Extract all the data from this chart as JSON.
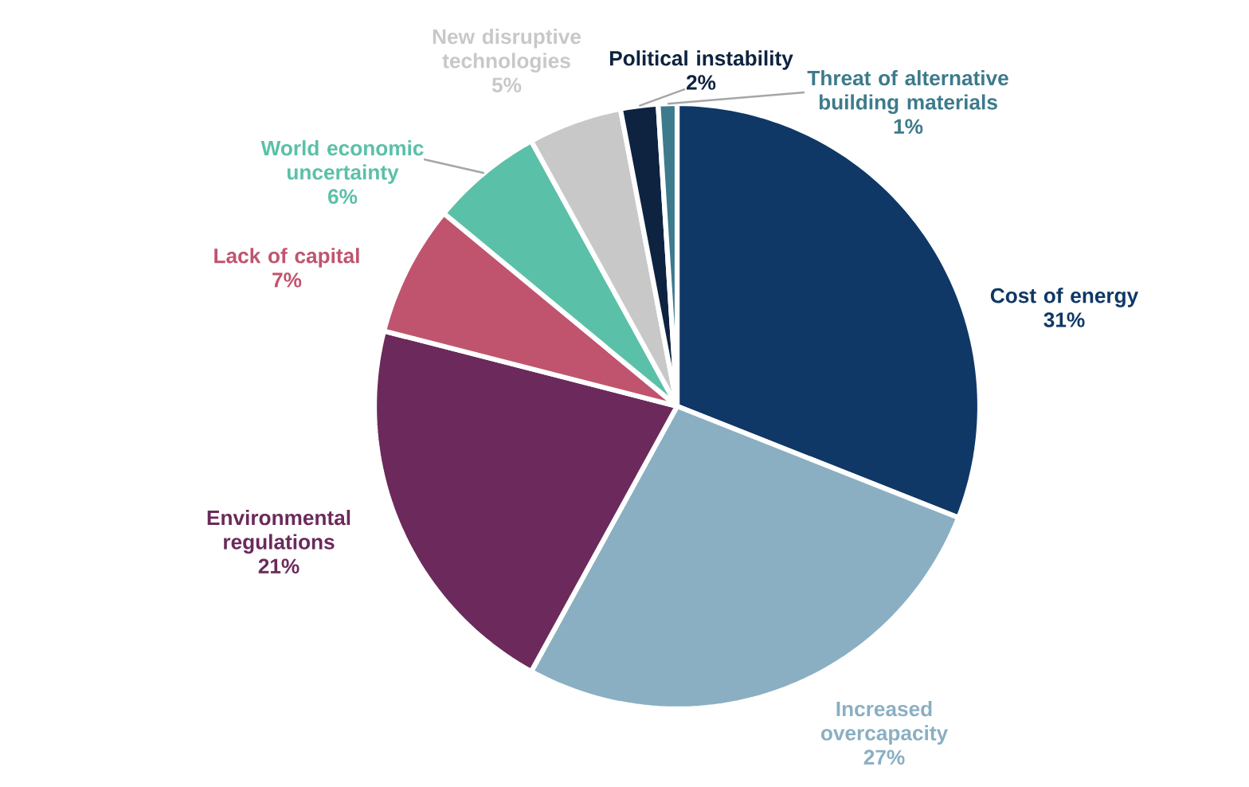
{
  "chart_data": {
    "type": "pie",
    "categories": [
      "Cost of energy",
      "Increased overcapacity",
      "Environmental regulations",
      "Lack of capital",
      "World economic uncertainty",
      "New disruptive technologies",
      "Political instability",
      "Threat of alternative building materials"
    ],
    "values": [
      31,
      27,
      21,
      7,
      6,
      5,
      2,
      1
    ],
    "value_labels": [
      "31%",
      "27%",
      "21%",
      "7%",
      "6%",
      "5%",
      "2%",
      "1%"
    ],
    "colors": [
      "#0f3866",
      "#8aafc2",
      "#6b2a5b",
      "#c0546e",
      "#5bc0a8",
      "#c8c8c8",
      "#0d2340",
      "#3d7a8c"
    ]
  }
}
